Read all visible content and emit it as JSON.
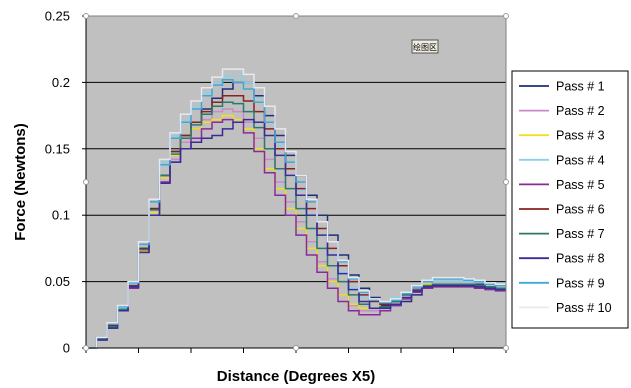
{
  "chart_data": {
    "type": "line",
    "title": "",
    "xlabel": "Distance (Degrees X5)",
    "ylabel": "Force (Newtons)",
    "ylim": [
      0,
      0.25
    ],
    "yticks": [
      "0",
      "0.05",
      "0.1",
      "0.15",
      "0.2",
      "0.25"
    ],
    "xlim": [
      0,
      80
    ],
    "x_tick_count": 8,
    "grid": "horizontal",
    "legend_position": "right",
    "plot_background": "#c0c0c0",
    "annotation": "绘图区",
    "x": [
      0,
      2,
      4,
      6,
      8,
      10,
      12,
      14,
      16,
      18,
      20,
      22,
      24,
      26,
      28,
      30,
      32,
      34,
      36,
      38,
      40,
      42,
      44,
      46,
      48,
      50,
      52,
      54,
      56,
      58,
      60,
      62,
      64,
      66,
      68,
      70,
      72,
      74,
      76,
      78,
      80
    ],
    "series": [
      {
        "name": "Pass # 1",
        "color": "#1f2f7a",
        "values": [
          0,
          0.008,
          0.018,
          0.03,
          0.048,
          0.075,
          0.105,
          0.13,
          0.148,
          0.16,
          0.17,
          0.18,
          0.188,
          0.195,
          0.2,
          0.2,
          0.19,
          0.175,
          0.16,
          0.145,
          0.13,
          0.115,
          0.1,
          0.085,
          0.07,
          0.055,
          0.045,
          0.038,
          0.032,
          0.032,
          0.035,
          0.04,
          0.045,
          0.048,
          0.048,
          0.048,
          0.048,
          0.048,
          0.046,
          0.045,
          0.045
        ]
      },
      {
        "name": "Pass # 2",
        "color": "#cc88cc",
        "values": [
          0,
          0.006,
          0.015,
          0.028,
          0.045,
          0.072,
          0.1,
          0.125,
          0.142,
          0.155,
          0.165,
          0.172,
          0.178,
          0.18,
          0.178,
          0.17,
          0.158,
          0.142,
          0.125,
          0.11,
          0.095,
          0.08,
          0.065,
          0.052,
          0.04,
          0.032,
          0.028,
          0.028,
          0.03,
          0.035,
          0.04,
          0.045,
          0.047,
          0.048,
          0.048,
          0.048,
          0.048,
          0.047,
          0.046,
          0.045,
          0.045
        ]
      },
      {
        "name": "Pass # 3",
        "color": "#f0e020",
        "values": [
          0,
          0.006,
          0.016,
          0.029,
          0.046,
          0.073,
          0.102,
          0.128,
          0.145,
          0.158,
          0.165,
          0.17,
          0.172,
          0.175,
          0.172,
          0.165,
          0.15,
          0.135,
          0.12,
          0.105,
          0.09,
          0.075,
          0.062,
          0.05,
          0.04,
          0.033,
          0.03,
          0.03,
          0.033,
          0.037,
          0.042,
          0.046,
          0.048,
          0.048,
          0.048,
          0.048,
          0.048,
          0.047,
          0.046,
          0.045,
          0.045
        ]
      },
      {
        "name": "Pass # 4",
        "color": "#8ad0e8",
        "values": [
          0,
          0.007,
          0.017,
          0.03,
          0.048,
          0.078,
          0.11,
          0.14,
          0.16,
          0.172,
          0.182,
          0.192,
          0.2,
          0.205,
          0.205,
          0.2,
          0.188,
          0.17,
          0.152,
          0.135,
          0.118,
          0.1,
          0.085,
          0.07,
          0.057,
          0.045,
          0.038,
          0.035,
          0.035,
          0.038,
          0.042,
          0.046,
          0.05,
          0.05,
          0.05,
          0.05,
          0.05,
          0.05,
          0.048,
          0.047,
          0.047
        ]
      },
      {
        "name": "Pass # 5",
        "color": "#8a2a9a",
        "values": [
          0,
          0.006,
          0.015,
          0.028,
          0.045,
          0.072,
          0.1,
          0.125,
          0.14,
          0.15,
          0.158,
          0.165,
          0.17,
          0.172,
          0.17,
          0.162,
          0.148,
          0.132,
          0.115,
          0.1,
          0.085,
          0.07,
          0.057,
          0.045,
          0.035,
          0.028,
          0.025,
          0.025,
          0.028,
          0.032,
          0.037,
          0.042,
          0.045,
          0.046,
          0.046,
          0.046,
          0.046,
          0.045,
          0.044,
          0.043,
          0.043
        ]
      },
      {
        "name": "Pass # 6",
        "color": "#8a2020",
        "values": [
          0,
          0.007,
          0.017,
          0.029,
          0.047,
          0.075,
          0.105,
          0.13,
          0.148,
          0.16,
          0.17,
          0.178,
          0.185,
          0.19,
          0.19,
          0.186,
          0.178,
          0.165,
          0.15,
          0.135,
          0.12,
          0.105,
          0.09,
          0.075,
          0.062,
          0.05,
          0.04,
          0.035,
          0.033,
          0.035,
          0.04,
          0.044,
          0.047,
          0.047,
          0.047,
          0.047,
          0.047,
          0.047,
          0.046,
          0.045,
          0.045
        ]
      },
      {
        "name": "Pass # 7",
        "color": "#2a7a6a",
        "values": [
          0,
          0.007,
          0.016,
          0.029,
          0.046,
          0.074,
          0.104,
          0.13,
          0.146,
          0.158,
          0.168,
          0.176,
          0.182,
          0.185,
          0.184,
          0.178,
          0.166,
          0.15,
          0.135,
          0.12,
          0.105,
          0.09,
          0.075,
          0.062,
          0.05,
          0.04,
          0.033,
          0.03,
          0.031,
          0.035,
          0.04,
          0.044,
          0.047,
          0.048,
          0.048,
          0.048,
          0.048,
          0.047,
          0.046,
          0.045,
          0.045
        ]
      },
      {
        "name": "Pass # 8",
        "color": "#3a2a9a",
        "values": [
          0,
          0.006,
          0.015,
          0.028,
          0.046,
          0.072,
          0.1,
          0.124,
          0.14,
          0.15,
          0.155,
          0.158,
          0.16,
          0.165,
          0.17,
          0.172,
          0.17,
          0.16,
          0.145,
          0.13,
          0.115,
          0.1,
          0.085,
          0.07,
          0.056,
          0.044,
          0.035,
          0.03,
          0.03,
          0.033,
          0.038,
          0.043,
          0.046,
          0.047,
          0.047,
          0.047,
          0.047,
          0.046,
          0.045,
          0.044,
          0.044
        ]
      },
      {
        "name": "Pass # 9",
        "color": "#40a8d8",
        "values": [
          0,
          0.008,
          0.018,
          0.031,
          0.049,
          0.078,
          0.11,
          0.138,
          0.158,
          0.17,
          0.18,
          0.19,
          0.198,
          0.202,
          0.2,
          0.195,
          0.185,
          0.17,
          0.155,
          0.14,
          0.125,
          0.11,
          0.095,
          0.08,
          0.065,
          0.052,
          0.042,
          0.036,
          0.034,
          0.036,
          0.041,
          0.046,
          0.05,
          0.052,
          0.052,
          0.052,
          0.051,
          0.05,
          0.048,
          0.047,
          0.047
        ]
      },
      {
        "name": "Pass # 10",
        "color": "#e8e8f0",
        "values": [
          0,
          0.008,
          0.019,
          0.032,
          0.05,
          0.08,
          0.112,
          0.142,
          0.162,
          0.176,
          0.186,
          0.196,
          0.204,
          0.21,
          0.21,
          0.206,
          0.196,
          0.182,
          0.165,
          0.148,
          0.13,
          0.112,
          0.095,
          0.08,
          0.066,
          0.053,
          0.043,
          0.037,
          0.035,
          0.037,
          0.042,
          0.047,
          0.051,
          0.053,
          0.053,
          0.053,
          0.052,
          0.051,
          0.049,
          0.048,
          0.048
        ]
      }
    ]
  }
}
